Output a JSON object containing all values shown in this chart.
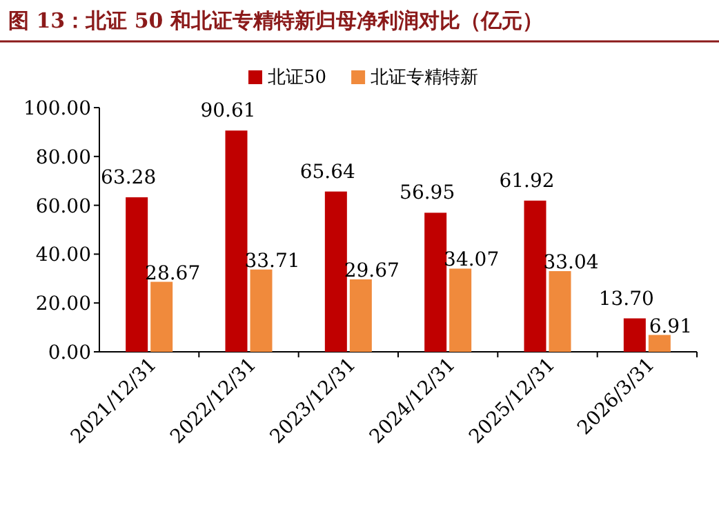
{
  "chart_data": {
    "type": "bar",
    "title": "图 13：北证 50 和北证专精特新归母净利润对比（亿元）",
    "categories": [
      "2021/12/31",
      "2022/12/31",
      "2023/12/31",
      "2024/12/31",
      "2025/12/31",
      "2026/3/31"
    ],
    "series": [
      {
        "name": "北证50",
        "color": "#c00000",
        "values": [
          63.28,
          90.61,
          65.64,
          56.95,
          61.92,
          13.7
        ],
        "value_labels": [
          "63.28",
          "90.61",
          "65.64",
          "56.95",
          "61.92",
          "13.70"
        ]
      },
      {
        "name": "北证专精特新",
        "color": "#f08a3c",
        "values": [
          28.67,
          33.71,
          29.67,
          34.07,
          33.04,
          6.91
        ],
        "value_labels": [
          "28.67",
          "33.71",
          "29.67",
          "34.07",
          "33.04",
          "6.91"
        ]
      }
    ],
    "ylim": [
      0,
      100
    ],
    "yticks": [
      {
        "value": 0,
        "label": "0.00"
      },
      {
        "value": 20,
        "label": "20.00"
      },
      {
        "value": 40,
        "label": "40.00"
      },
      {
        "value": 60,
        "label": "60.00"
      },
      {
        "value": 80,
        "label": "80.00"
      },
      {
        "value": 100,
        "label": "100.00"
      }
    ],
    "legend": "top"
  }
}
